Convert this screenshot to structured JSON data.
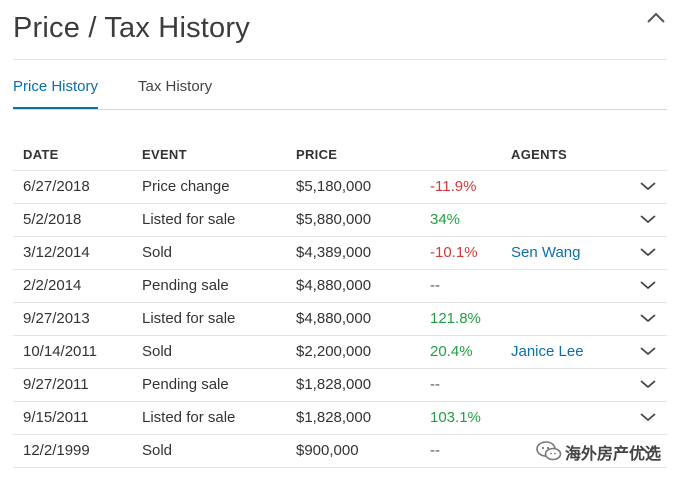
{
  "header": {
    "title": "Price / Tax History",
    "collapse_icon": "chevron-up-icon"
  },
  "tabs": [
    {
      "label": "Price History",
      "active": true
    },
    {
      "label": "Tax History",
      "active": false
    }
  ],
  "table": {
    "columns": [
      "DATE",
      "EVENT",
      "PRICE",
      "",
      "AGENTS"
    ],
    "rows": [
      {
        "date": "6/27/2018",
        "event": "Price change",
        "price": "$5,180,000",
        "change": "-11.9%",
        "change_type": "negative",
        "agent": ""
      },
      {
        "date": "5/2/2018",
        "event": "Listed for sale",
        "price": "$5,880,000",
        "change": "34%",
        "change_type": "positive",
        "agent": ""
      },
      {
        "date": "3/12/2014",
        "event": "Sold",
        "price": "$4,389,000",
        "change": "-10.1%",
        "change_type": "negative",
        "agent": "Sen Wang"
      },
      {
        "date": "2/2/2014",
        "event": "Pending sale",
        "price": "$4,880,000",
        "change": "--",
        "change_type": "none",
        "agent": ""
      },
      {
        "date": "9/27/2013",
        "event": "Listed for sale",
        "price": "$4,880,000",
        "change": "121.8%",
        "change_type": "positive",
        "agent": ""
      },
      {
        "date": "10/14/2011",
        "event": "Sold",
        "price": "$2,200,000",
        "change": "20.4%",
        "change_type": "positive",
        "agent": "Janice Lee"
      },
      {
        "date": "9/27/2011",
        "event": "Pending sale",
        "price": "$1,828,000",
        "change": "--",
        "change_type": "none",
        "agent": ""
      },
      {
        "date": "9/15/2011",
        "event": "Listed for sale",
        "price": "$1,828,000",
        "change": "103.1%",
        "change_type": "positive",
        "agent": ""
      },
      {
        "date": "12/2/1999",
        "event": "Sold",
        "price": "$900,000",
        "change": "--",
        "change_type": "none",
        "agent": ""
      }
    ],
    "row_expand_icon": "chevron-down-icon"
  },
  "watermark": {
    "text": "海外房产优选",
    "icon": "wechat-icon"
  },
  "colors": {
    "accent": "#0b70a8",
    "negative": "#d03a3a",
    "positive": "#22a043",
    "text": "#333333"
  }
}
